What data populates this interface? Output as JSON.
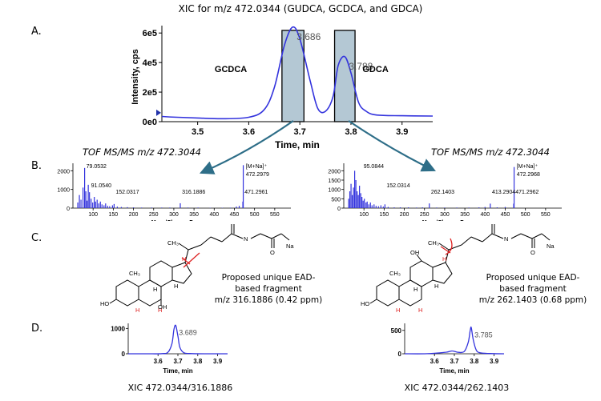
{
  "title": "XIC for m/z 472.0344 (GUDCA, GCDCA, and GDCA)",
  "section_labels": [
    "A.",
    "B.",
    "C.",
    "D."
  ],
  "chart_data": [
    {
      "id": "A",
      "type": "line",
      "ylabel": "Intensity, cps",
      "xlabel": "Time, min",
      "xlim": [
        3.43,
        3.96
      ],
      "ylim": [
        0,
        650000
      ],
      "xticks": [
        3.5,
        3.6,
        3.7,
        3.8,
        3.9
      ],
      "xtick_labels": [
        "3.5",
        "3.6",
        "3.7",
        "3.8",
        "3.9"
      ],
      "yticks": [
        0,
        200000,
        400000,
        600000
      ],
      "ytick_labels": [
        "0e0",
        "2e5",
        "4e5",
        "6e5"
      ],
      "x": [
        3.43,
        3.46,
        3.5,
        3.55,
        3.6,
        3.63,
        3.65,
        3.67,
        3.686,
        3.7,
        3.72,
        3.735,
        3.75,
        3.765,
        3.775,
        3.788,
        3.8,
        3.815,
        3.83,
        3.85,
        3.9,
        3.96
      ],
      "y": [
        35000,
        30000,
        25000,
        20000,
        30000,
        80000,
        230000,
        520000,
        640000,
        560000,
        280000,
        90000,
        70000,
        170000,
        380000,
        440000,
        330000,
        130000,
        70000,
        45000,
        40000,
        38000
      ],
      "peak_labels": [
        {
          "x": 3.686,
          "label": "3.686"
        },
        {
          "x": 3.788,
          "label": "3.788"
        }
      ],
      "annotations": [
        "GCDCA",
        "GDCA"
      ]
    },
    {
      "id": "B-left",
      "type": "bar",
      "header": "TOF MS/MS m/z 472.3044",
      "xlabel": "Mass/Charge, Da",
      "xlim": [
        50,
        590
      ],
      "ylim": [
        0,
        2400
      ],
      "xticks": [
        100,
        150,
        200,
        250,
        300,
        350,
        400,
        450,
        500,
        550
      ],
      "yticks": [
        0,
        1000,
        2000
      ],
      "x": [
        62,
        66,
        70,
        75,
        79,
        82,
        85,
        88,
        91,
        95,
        99,
        103,
        106,
        110,
        114,
        118,
        122,
        127,
        131,
        136,
        141,
        148,
        152,
        160,
        170,
        185,
        200,
        220,
        245,
        270,
        290,
        316,
        335,
        360,
        390,
        420,
        440,
        455,
        462,
        471,
        472
      ],
      "y": [
        300,
        700,
        450,
        1100,
        2150,
        900,
        400,
        1250,
        850,
        500,
        300,
        600,
        350,
        450,
        250,
        350,
        200,
        150,
        250,
        120,
        100,
        150,
        220,
        80,
        60,
        50,
        40,
        30,
        30,
        30,
        30,
        260,
        30,
        30,
        20,
        20,
        25,
        80,
        120,
        350,
        2300
      ],
      "peak_labels": [
        {
          "x": 79.0532,
          "label": "79.0532"
        },
        {
          "x": 91.054,
          "label": "91.0540"
        },
        {
          "x": 152.0317,
          "label": "152.0317"
        },
        {
          "x": 316.1886,
          "label": "316.1886"
        },
        {
          "x": 471.2961,
          "label": "471.2961"
        },
        {
          "x": 472.2979,
          "label": "472.2979"
        }
      ],
      "precursor_label": "[M+Na]⁺"
    },
    {
      "id": "B-right",
      "type": "bar",
      "header": "TOF MS/MS m/z 472.3044",
      "xlabel": "Mass/Charge, Da",
      "xlim": [
        50,
        590
      ],
      "ylim": [
        0,
        2400
      ],
      "xticks": [
        100,
        150,
        200,
        250,
        300,
        350,
        400,
        450,
        500,
        550
      ],
      "yticks": [
        0,
        500,
        1000,
        1500,
        2000
      ],
      "x": [
        62,
        65,
        68,
        71,
        74,
        77,
        80,
        83,
        86,
        89,
        92,
        95,
        98,
        101,
        105,
        108,
        112,
        116,
        120,
        125,
        130,
        136,
        142,
        148,
        152,
        160,
        175,
        190,
        210,
        230,
        245,
        262,
        280,
        300,
        330,
        360,
        385,
        400,
        413,
        430,
        450,
        471,
        472
      ],
      "y": [
        500,
        900,
        1300,
        700,
        1100,
        2000,
        1500,
        900,
        700,
        1200,
        800,
        600,
        400,
        500,
        300,
        350,
        200,
        300,
        150,
        200,
        120,
        100,
        150,
        80,
        200,
        60,
        40,
        40,
        40,
        30,
        40,
        250,
        30,
        30,
        30,
        30,
        40,
        60,
        240,
        40,
        60,
        240,
        2200
      ],
      "peak_labels": [
        {
          "x": 95.0844,
          "label": "95.0844"
        },
        {
          "x": 152.0314,
          "label": "152.0314"
        },
        {
          "x": 262.1403,
          "label": "262.1403"
        },
        {
          "x": 413.2904,
          "label": "413.2904"
        },
        {
          "x": 471.2962,
          "label": "471.2962"
        },
        {
          "x": 472.2968,
          "label": "472.2968"
        }
      ],
      "precursor_label": "[M+Na]⁺"
    },
    {
      "id": "D-left",
      "type": "line",
      "xlabel": "Time, min",
      "xlim": [
        3.45,
        3.95
      ],
      "ylim": [
        0,
        1200
      ],
      "xticks": [
        3.6,
        3.7,
        3.8,
        3.9
      ],
      "yticks": [
        0,
        1000
      ],
      "x": [
        3.45,
        3.55,
        3.62,
        3.65,
        3.67,
        3.68,
        3.689,
        3.7,
        3.71,
        3.73,
        3.76,
        3.85,
        3.95
      ],
      "y": [
        0,
        0,
        5,
        60,
        400,
        950,
        1120,
        700,
        250,
        40,
        8,
        0,
        0
      ],
      "peak_labels": [
        {
          "x": 3.689,
          "label": "3.689"
        }
      ],
      "caption": "XIC 472.0344/316.1886"
    },
    {
      "id": "D-right",
      "type": "line",
      "xlabel": "Time, min",
      "xlim": [
        3.45,
        3.95
      ],
      "ylim": [
        0,
        650
      ],
      "xticks": [
        3.6,
        3.7,
        3.8,
        3.9
      ],
      "yticks": [
        0,
        500
      ],
      "x": [
        3.45,
        3.55,
        3.6,
        3.66,
        3.69,
        3.72,
        3.75,
        3.77,
        3.78,
        3.785,
        3.795,
        3.81,
        3.83,
        3.88,
        3.95
      ],
      "y": [
        0,
        0,
        10,
        35,
        60,
        30,
        50,
        250,
        500,
        560,
        300,
        80,
        20,
        5,
        0
      ],
      "peak_labels": [
        {
          "x": 3.785,
          "label": "3.785"
        }
      ],
      "caption": "XIC 472.0344/262.1403"
    }
  ],
  "structures": [
    {
      "atom_labels": [
        "CH₃",
        "H",
        "N",
        "O",
        "O",
        "Na",
        "CH₃",
        "H",
        "H",
        "HO",
        "H",
        "H",
        "OH"
      ],
      "fragment_text": [
        "Proposed unique EAD-",
        "based fragment",
        "m/z 316.1886 (0.42 ppm)"
      ]
    },
    {
      "atom_labels": [
        "CH₃",
        "OH",
        "H",
        "N",
        "O",
        "O",
        "Na",
        "CH₃",
        "H",
        "H",
        "HO",
        "H",
        "H"
      ],
      "fragment_text": [
        "Proposed unique EAD-",
        "based fragment",
        "m/z 262.1403 (0.68 ppm)"
      ]
    }
  ],
  "colors": {
    "trace": "#3333dd",
    "box_fill": "#b4c8d4",
    "arrow": "#2e6e88",
    "cleave": "#dd2222"
  }
}
